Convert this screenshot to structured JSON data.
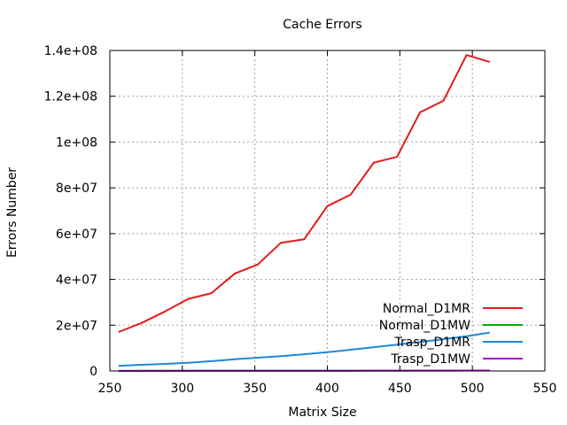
{
  "chart_data": {
    "type": "line",
    "title": "Cache Errors",
    "xlabel": "Matrix Size",
    "ylabel": "Errors Number",
    "xlim": [
      250,
      550
    ],
    "ylim": [
      0,
      140000000
    ],
    "x_ticks": [
      250,
      300,
      350,
      400,
      450,
      500,
      550
    ],
    "x_tick_labels": [
      "250",
      "300",
      "350",
      "400",
      "450",
      "500",
      "550"
    ],
    "y_ticks": [
      0,
      20000000,
      40000000,
      60000000,
      80000000,
      100000000,
      120000000,
      140000000
    ],
    "y_tick_labels": [
      "0",
      "2e+07",
      "4e+07",
      "6e+07",
      "8e+07",
      "1e+08",
      "1.2e+08",
      "1.4e+08"
    ],
    "grid": true,
    "legend_position": "bottom-right",
    "x": [
      256,
      272,
      288,
      304,
      320,
      336,
      352,
      368,
      384,
      400,
      416,
      432,
      448,
      464,
      480,
      496,
      512
    ],
    "series": [
      {
        "name": "Normal_D1MR",
        "color": "#e41a1c",
        "values": [
          17000000,
          21000000,
          26000000,
          31500000,
          34000000,
          42500000,
          46500000,
          56000000,
          57500000,
          72000000,
          77000000,
          91000000,
          93500000,
          113000000,
          118000000,
          138000000,
          135000000
        ]
      },
      {
        "name": "Normal_D1MW",
        "color": "#00b000",
        "values": [
          50000,
          60000,
          70000,
          80000,
          90000,
          100000,
          110000,
          120000,
          130000,
          140000,
          150000,
          160000,
          170000,
          180000,
          190000,
          200000,
          210000
        ]
      },
      {
        "name": "Trasp_D1MR",
        "color": "#1e88d8",
        "values": [
          2200000,
          2700000,
          3100000,
          3600000,
          4300000,
          5100000,
          5800000,
          6500000,
          7300000,
          8200000,
          9300000,
          10400000,
          11500000,
          12700000,
          13900000,
          15200000,
          16800000
        ]
      },
      {
        "name": "Trasp_D1MW",
        "color": "#b000d8",
        "values": [
          30000,
          40000,
          50000,
          60000,
          70000,
          80000,
          90000,
          100000,
          110000,
          120000,
          130000,
          140000,
          150000,
          160000,
          170000,
          180000,
          190000
        ]
      }
    ]
  }
}
